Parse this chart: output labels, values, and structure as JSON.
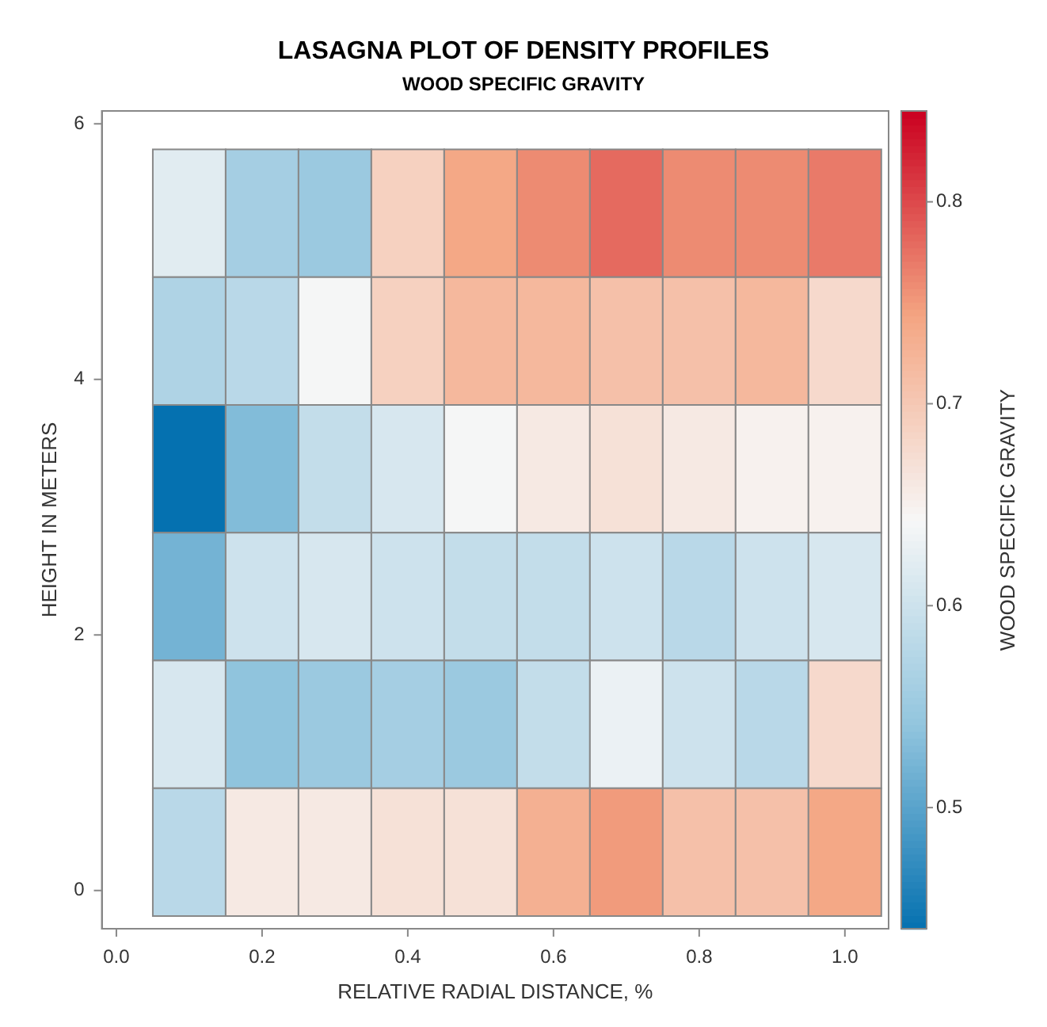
{
  "chart_data": {
    "type": "heatmap",
    "title": "LASAGNA PLOT OF DENSITY PROFILES",
    "subtitle": "WOOD SPECIFIC GRAVITY",
    "xlabel": "RELATIVE RADIAL DISTANCE, %",
    "ylabel": "HEIGHT IN METERS",
    "clabel": "WOOD SPECIFIC GRAVITY",
    "x": [
      0.1,
      0.2,
      0.3,
      0.4,
      0.5,
      0.6,
      0.7,
      0.8,
      0.9,
      1.0
    ],
    "y": [
      5.3,
      4.3,
      3.3,
      2.3,
      1.3,
      0.3
    ],
    "cells": [
      [
        0.62,
        0.56,
        0.55,
        0.69,
        0.74,
        0.76,
        0.78,
        0.76,
        0.76,
        0.77
      ],
      [
        0.57,
        0.58,
        0.64,
        0.69,
        0.72,
        0.72,
        0.71,
        0.71,
        0.72,
        0.68
      ],
      [
        0.44,
        0.53,
        0.59,
        0.61,
        0.64,
        0.66,
        0.67,
        0.66,
        0.65,
        0.65
      ],
      [
        0.52,
        0.6,
        0.61,
        0.6,
        0.59,
        0.59,
        0.6,
        0.58,
        0.6,
        0.61
      ],
      [
        0.61,
        0.54,
        0.55,
        0.56,
        0.55,
        0.59,
        0.63,
        0.6,
        0.58,
        0.68
      ],
      [
        0.58,
        0.66,
        0.66,
        0.67,
        0.67,
        0.73,
        0.75,
        0.71,
        0.71,
        0.74
      ]
    ],
    "xlim": [
      -0.02,
      1.06
    ],
    "xticks": [
      {
        "value": 0,
        "label": "0.0"
      },
      0.2,
      0.4,
      0.6,
      0.8,
      {
        "value": 1,
        "label": "1.0"
      }
    ],
    "ylim": [
      -0.3,
      6.1
    ],
    "yticks": [
      0,
      2,
      4,
      6
    ],
    "clim": [
      0.44,
      0.845
    ],
    "cticks": [
      0.5,
      0.6,
      0.7,
      0.8
    ],
    "colors": [
      "#0571b0",
      "#92c5de",
      "#f7f7f7",
      "#f4a582",
      "#ca0020"
    ],
    "grid": false,
    "legend": false
  }
}
